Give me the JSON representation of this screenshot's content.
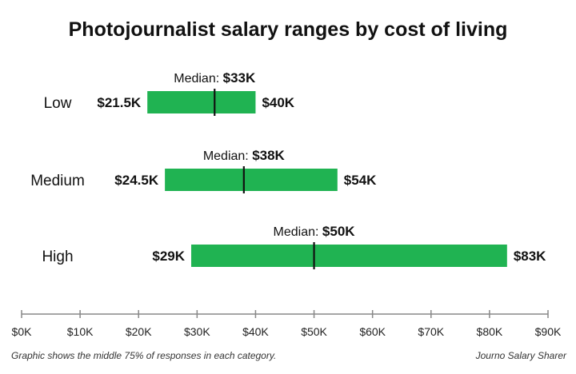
{
  "chart_data": {
    "type": "range-bar",
    "title": "Photojournalist salary ranges by cost of living",
    "categories": [
      "Low",
      "Medium",
      "High"
    ],
    "ranges": [
      {
        "category": "Low",
        "low": 21.5,
        "high": 40,
        "median": 33,
        "low_label": "$21.5K",
        "high_label": "$40K",
        "median_label": "$33K"
      },
      {
        "category": "Medium",
        "low": 24.5,
        "high": 54,
        "median": 38,
        "low_label": "$24.5K",
        "high_label": "$54K",
        "median_label": "$38K"
      },
      {
        "category": "High",
        "low": 29,
        "high": 83,
        "median": 50,
        "low_label": "$29K",
        "high_label": "$83K",
        "median_label": "$50K"
      }
    ],
    "median_prefix": "Median:",
    "x_ticks": [
      0,
      10,
      20,
      30,
      40,
      50,
      60,
      70,
      80,
      90
    ],
    "x_tick_labels": [
      "$0K",
      "$10K",
      "$20K",
      "$30K",
      "$40K",
      "$50K",
      "$60K",
      "$70K",
      "$80K",
      "$90K"
    ],
    "xlim": [
      0,
      90
    ],
    "bar_color": "#20b352",
    "grid": false,
    "footnote": "Graphic shows the middle 75% of responses in each category.",
    "source": "Journo Salary Sharer"
  }
}
